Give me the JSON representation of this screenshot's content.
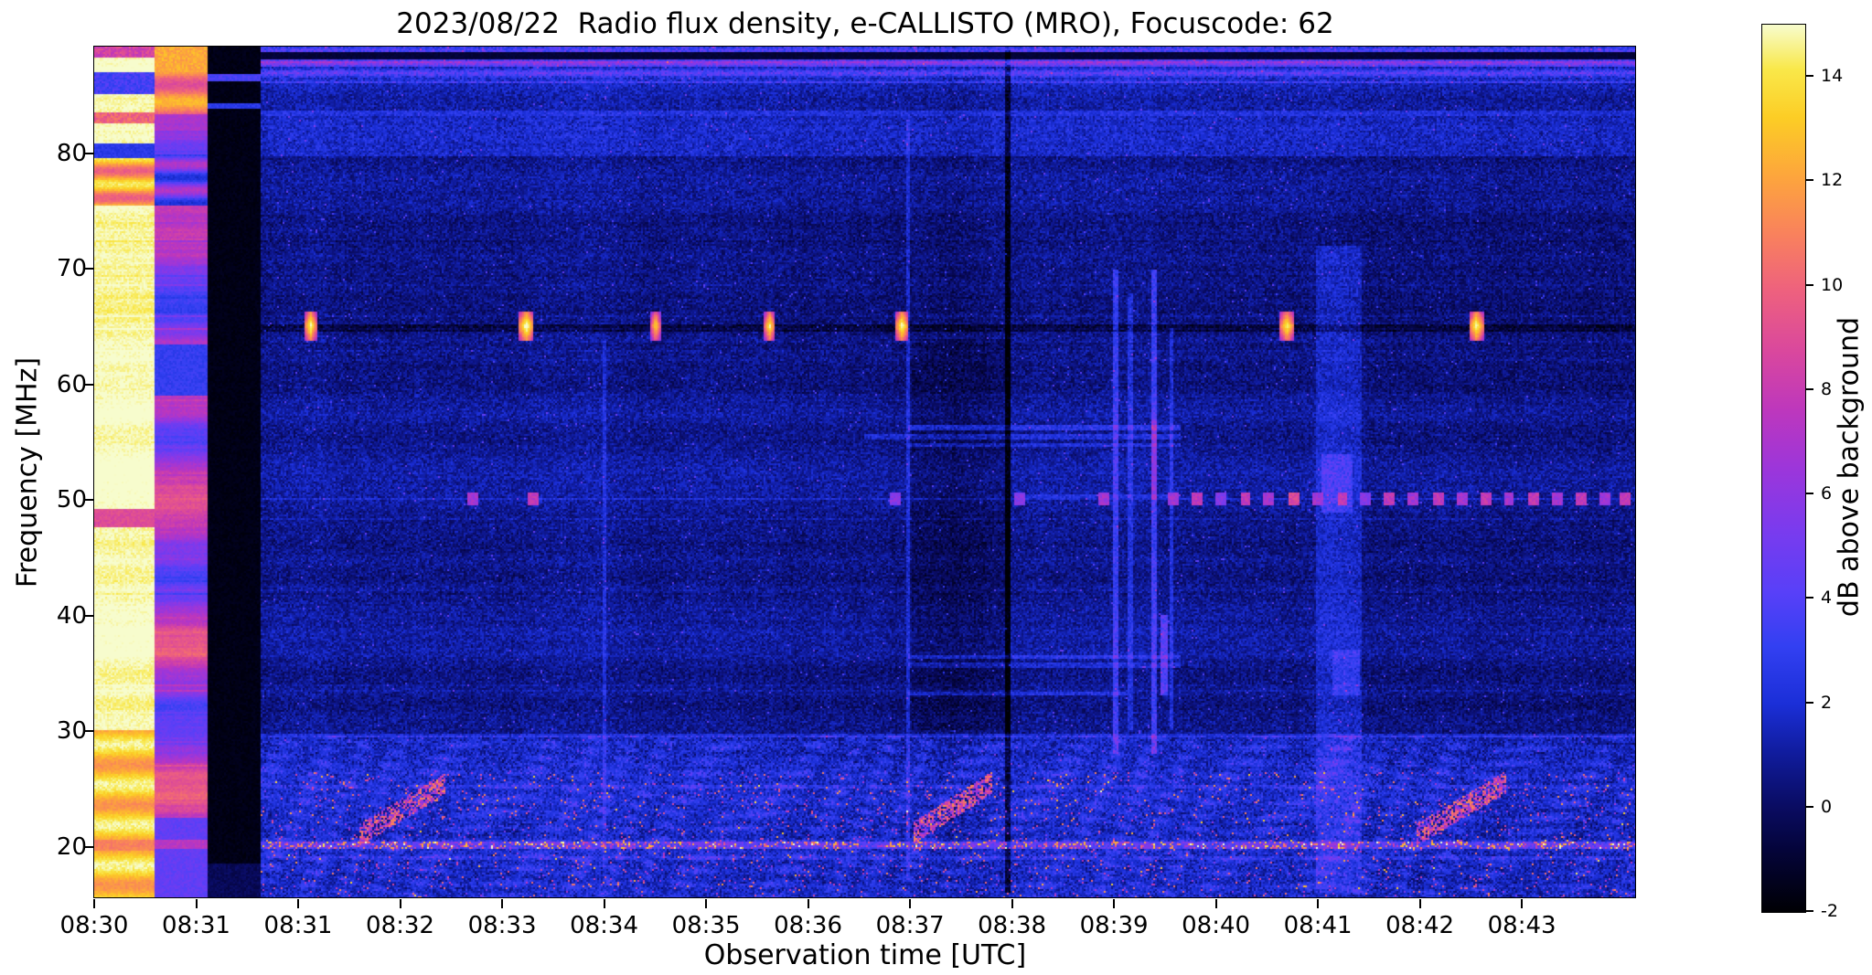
{
  "chart_data": {
    "type": "heatmap",
    "title": "2023/08/22  Radio flux density, e-CALLISTO (MRO), Focuscode: 62",
    "xlabel": "Observation time [UTC]",
    "ylabel": "Frequency [MHz]",
    "x_tick_labels": [
      "08:30",
      "08:31",
      "08:31",
      "08:32",
      "08:33",
      "08:34",
      "08:35",
      "08:36",
      "08:37",
      "08:38",
      "08:39",
      "08:40",
      "08:41",
      "08:42",
      "08:43"
    ],
    "x_tick_minutes": [
      0,
      1,
      2,
      3,
      4,
      5,
      6,
      7,
      8,
      9,
      10,
      11,
      12,
      13,
      14
    ],
    "x_range_minutes": [
      0,
      15.12
    ],
    "y_tick_values": [
      20,
      30,
      40,
      50,
      60,
      70,
      80
    ],
    "freq_range_mhz": [
      15.57,
      89.25
    ],
    "grid": false,
    "colorbar": {
      "label": "dB above background",
      "ticks": [
        -2,
        0,
        2,
        4,
        6,
        8,
        10,
        12,
        14
      ],
      "range": [
        -2,
        15
      ]
    },
    "colormap_stops": [
      [
        0.0,
        "#000004"
      ],
      [
        0.07,
        "#04043a"
      ],
      [
        0.12,
        "#0a0c63"
      ],
      [
        0.18,
        "#101c9e"
      ],
      [
        0.235,
        "#1b2fd8"
      ],
      [
        0.3,
        "#3340f2"
      ],
      [
        0.36,
        "#5840f8"
      ],
      [
        0.43,
        "#7a3bee"
      ],
      [
        0.5,
        "#9c36da"
      ],
      [
        0.565,
        "#bd37bd"
      ],
      [
        0.63,
        "#d9479e"
      ],
      [
        0.7,
        "#ee617e"
      ],
      [
        0.765,
        "#f9825c"
      ],
      [
        0.83,
        "#fda63c"
      ],
      [
        0.895,
        "#fccd25"
      ],
      [
        0.95,
        "#f9e84a"
      ],
      [
        1.0,
        "#f7fccd"
      ]
    ],
    "segments": {
      "calibration_white_band": {
        "x0": 0.0,
        "x1": 0.039,
        "desc": "saturated white/yellow calibration column at 08:30"
      },
      "calibration_pink_band": {
        "x0": 0.039,
        "x1": 0.0733,
        "desc": "pink/magenta calibration column near 08:31"
      },
      "data_gap_black": {
        "x0": 0.0733,
        "x1": 0.107,
        "desc": "black data-gap column before second 08:31 tick"
      },
      "main": {
        "x0": 0.107,
        "x1": 1.0,
        "desc": "dark blue background spectrogram with RFI"
      }
    },
    "features": {
      "line65_mhz": {
        "freq": 65.0,
        "kind": "dark carrier line with intermittent saturated bursts"
      },
      "line65_blobs": [
        [
          0.14,
          15,
          0.004
        ],
        [
          0.28,
          15.5,
          0.005
        ],
        [
          0.364,
          13.5,
          0.0035
        ],
        [
          0.438,
          14.5,
          0.0035
        ],
        [
          0.524,
          15,
          0.0045
        ],
        [
          0.774,
          14.5,
          0.005
        ],
        [
          0.897,
          15,
          0.005
        ]
      ],
      "dots50": [
        [
          0.245,
          6
        ],
        [
          0.284,
          7
        ],
        [
          0.52,
          5
        ],
        [
          0.6,
          5
        ],
        [
          0.655,
          6
        ],
        [
          0.7,
          6
        ],
        [
          0.716,
          7
        ],
        [
          0.731,
          5
        ],
        [
          0.747,
          7
        ],
        [
          0.762,
          6
        ],
        [
          0.778,
          8
        ],
        [
          0.794,
          6
        ],
        [
          0.81,
          7
        ],
        [
          0.825,
          5
        ],
        [
          0.84,
          7
        ],
        [
          0.856,
          6
        ],
        [
          0.872,
          7
        ],
        [
          0.888,
          6
        ],
        [
          0.903,
          7
        ],
        [
          0.918,
          6
        ],
        [
          0.934,
          7
        ],
        [
          0.949,
          6
        ],
        [
          0.965,
          7
        ],
        [
          0.98,
          6
        ],
        [
          0.993,
          7
        ]
      ],
      "vlines": [
        {
          "x": 0.331,
          "w": 0.003,
          "f0": 18,
          "f1": 64,
          "dv": 1.2
        },
        {
          "x": 0.528,
          "w": 0.003,
          "f0": 17,
          "f1": 83,
          "dv": 1.5
        },
        {
          "x": 0.562,
          "w": 0.064,
          "f0": 30,
          "f1": 64,
          "dv": -0.55
        },
        {
          "x": 0.593,
          "w": 0.0035,
          "f0": 16,
          "f1": 89,
          "dv": -2.4
        },
        {
          "x": 0.663,
          "w": 0.004,
          "f0": 28,
          "f1": 70,
          "dv": 2.4
        },
        {
          "x": 0.672,
          "w": 0.003,
          "f0": 30,
          "f1": 68,
          "dv": 1.5
        },
        {
          "x": 0.688,
          "w": 0.004,
          "f0": 28,
          "f1": 70,
          "dv": 2.6
        },
        {
          "x": 0.688,
          "w": 0.0035,
          "f0": 50,
          "f1": 57,
          "dv": 2.2
        },
        {
          "x": 0.694,
          "w": 0.004,
          "f0": 33,
          "f1": 40,
          "dv": 3.2
        },
        {
          "x": 0.699,
          "w": 0.003,
          "f0": 30,
          "f1": 65,
          "dv": 1.6
        },
        {
          "x": 0.808,
          "w": 0.03,
          "f0": 16,
          "f1": 72,
          "dv": 1.15
        },
        {
          "x": 0.806,
          "w": 0.02,
          "f0": 49,
          "f1": 54,
          "dv": 1.5
        },
        {
          "x": 0.812,
          "w": 0.018,
          "f0": 33,
          "f1": 37,
          "dv": 1.2
        }
      ],
      "hlines": [
        {
          "f": 56.3,
          "x0": 0.528,
          "x1": 0.705,
          "dv": 1.9
        },
        {
          "f": 55.5,
          "x0": 0.5,
          "x1": 0.705,
          "dv": 1.5
        },
        {
          "f": 54.8,
          "x0": 0.528,
          "x1": 0.705,
          "dv": 1.3
        },
        {
          "f": 50.3,
          "x0": 0.6,
          "x1": 0.705,
          "dv": 1.2
        },
        {
          "f": 36.4,
          "x0": 0.528,
          "x1": 0.705,
          "dv": 1.6
        },
        {
          "f": 35.7,
          "x0": 0.528,
          "x1": 0.705,
          "dv": 1.2
        },
        {
          "f": 33.3,
          "x0": 0.528,
          "x1": 0.67,
          "dv": 1.5
        }
      ],
      "bursts_low_freq": [
        {
          "x0": 0.172,
          "len": 0.055,
          "f0": 21.0,
          "slope": 80
        },
        {
          "x0": 0.532,
          "len": 0.05,
          "f0": 21.2,
          "slope": 85
        },
        {
          "x0": 0.858,
          "len": 0.058,
          "f0": 21.0,
          "slope": 78
        }
      ]
    }
  }
}
